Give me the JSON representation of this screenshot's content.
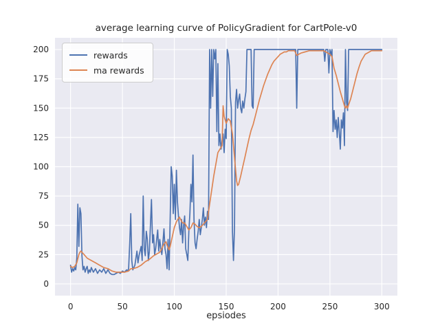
{
  "chart_data": {
    "type": "line",
    "title": "average learning curve of PolicyGradient for CartPole-v0",
    "xlabel": "epsiodes",
    "ylabel": "",
    "xlim": [
      -15,
      315
    ],
    "ylim": [
      -10,
      210
    ],
    "xticks": [
      0,
      50,
      100,
      150,
      200,
      250,
      300
    ],
    "yticks": [
      0,
      25,
      50,
      75,
      100,
      125,
      150,
      175,
      200
    ],
    "grid": true,
    "legend_position": "upper left",
    "plot_background": "#eaeaf2",
    "grid_color": "#ffffff",
    "text_color": "#262626",
    "series": [
      {
        "name": "rewards",
        "color": "#4c72b0",
        "points": [
          [
            0,
            16
          ],
          [
            1,
            10
          ],
          [
            2,
            13
          ],
          [
            3,
            11
          ],
          [
            4,
            14
          ],
          [
            5,
            12
          ],
          [
            6,
            22
          ],
          [
            7,
            68
          ],
          [
            8,
            32
          ],
          [
            9,
            65
          ],
          [
            10,
            60
          ],
          [
            11,
            24
          ],
          [
            12,
            12
          ],
          [
            13,
            15
          ],
          [
            14,
            10
          ],
          [
            15,
            13
          ],
          [
            16,
            15
          ],
          [
            17,
            9
          ],
          [
            18,
            12
          ],
          [
            19,
            10
          ],
          [
            20,
            14
          ],
          [
            22,
            10
          ],
          [
            24,
            13
          ],
          [
            26,
            9
          ],
          [
            28,
            12
          ],
          [
            30,
            10
          ],
          [
            32,
            13
          ],
          [
            34,
            9
          ],
          [
            36,
            12
          ],
          [
            38,
            9
          ],
          [
            40,
            8
          ],
          [
            42,
            8
          ],
          [
            44,
            9
          ],
          [
            46,
            10
          ],
          [
            48,
            9
          ],
          [
            50,
            11
          ],
          [
            52,
            10
          ],
          [
            54,
            12
          ],
          [
            55,
            11
          ],
          [
            56,
            13
          ],
          [
            57,
            35
          ],
          [
            58,
            60
          ],
          [
            59,
            20
          ],
          [
            60,
            12
          ],
          [
            62,
            16
          ],
          [
            64,
            28
          ],
          [
            65,
            18
          ],
          [
            66,
            24
          ],
          [
            68,
            32
          ],
          [
            69,
            20
          ],
          [
            70,
            75
          ],
          [
            71,
            30
          ],
          [
            72,
            24
          ],
          [
            73,
            45
          ],
          [
            74,
            38
          ],
          [
            75,
            20
          ],
          [
            76,
            28
          ],
          [
            77,
            50
          ],
          [
            78,
            72
          ],
          [
            79,
            35
          ],
          [
            80,
            42
          ],
          [
            81,
            25
          ],
          [
            82,
            30
          ],
          [
            84,
            46
          ],
          [
            85,
            28
          ],
          [
            86,
            38
          ],
          [
            87,
            30
          ],
          [
            88,
            25
          ],
          [
            89,
            35
          ],
          [
            90,
            47
          ],
          [
            91,
            30
          ],
          [
            92,
            25
          ],
          [
            93,
            13
          ],
          [
            94,
            38
          ],
          [
            95,
            12
          ],
          [
            96,
            55
          ],
          [
            97,
            100
          ],
          [
            98,
            92
          ],
          [
            99,
            60
          ],
          [
            100,
            85
          ],
          [
            101,
            55
          ],
          [
            102,
            97
          ],
          [
            103,
            70
          ],
          [
            104,
            58
          ],
          [
            105,
            48
          ],
          [
            106,
            42
          ],
          [
            107,
            55
          ],
          [
            108,
            35
          ],
          [
            109,
            50
          ],
          [
            110,
            58
          ],
          [
            111,
            30
          ],
          [
            112,
            25
          ],
          [
            113,
            20
          ],
          [
            114,
            45
          ],
          [
            115,
            60
          ],
          [
            116,
            85
          ],
          [
            117,
            70
          ],
          [
            118,
            110
          ],
          [
            119,
            55
          ],
          [
            120,
            35
          ],
          [
            121,
            30
          ],
          [
            122,
            38
          ],
          [
            123,
            45
          ],
          [
            124,
            55
          ],
          [
            125,
            42
          ],
          [
            126,
            48
          ],
          [
            127,
            55
          ],
          [
            128,
            65
          ],
          [
            129,
            50
          ],
          [
            130,
            57
          ],
          [
            131,
            48
          ],
          [
            132,
            62
          ],
          [
            133,
            55
          ],
          [
            134,
            200
          ],
          [
            135,
            150
          ],
          [
            136,
            200
          ],
          [
            137,
            160
          ],
          [
            138,
            200
          ],
          [
            139,
            192
          ],
          [
            140,
            200
          ],
          [
            141,
            130
          ],
          [
            142,
            188
          ],
          [
            143,
            118
          ],
          [
            144,
            128
          ],
          [
            145,
            115
          ],
          [
            146,
            122
          ],
          [
            147,
            128
          ],
          [
            148,
            112
          ],
          [
            149,
            132
          ],
          [
            150,
            124
          ],
          [
            151,
            200
          ],
          [
            152,
            196
          ],
          [
            153,
            186
          ],
          [
            154,
            160
          ],
          [
            155,
            150
          ],
          [
            156,
            45
          ],
          [
            157,
            20
          ],
          [
            158,
            48
          ],
          [
            159,
            155
          ],
          [
            160,
            166
          ],
          [
            161,
            150
          ],
          [
            162,
            157
          ],
          [
            163,
            162
          ],
          [
            164,
            150
          ],
          [
            165,
            146
          ],
          [
            166,
            156
          ],
          [
            167,
            150
          ],
          [
            168,
            158
          ],
          [
            169,
            164
          ],
          [
            170,
            200
          ],
          [
            174,
            200
          ],
          [
            175,
            152
          ],
          [
            176,
            150
          ],
          [
            177,
            200
          ],
          [
            180,
            200
          ],
          [
            185,
            200
          ],
          [
            190,
            200
          ],
          [
            195,
            200
          ],
          [
            200,
            200
          ],
          [
            205,
            200
          ],
          [
            210,
            200
          ],
          [
            215,
            200
          ],
          [
            217,
            200
          ],
          [
            218,
            150
          ],
          [
            219,
            200
          ],
          [
            225,
            200
          ],
          [
            230,
            200
          ],
          [
            235,
            200
          ],
          [
            240,
            200
          ],
          [
            244,
            200
          ],
          [
            245,
            190
          ],
          [
            246,
            200
          ],
          [
            248,
            200
          ],
          [
            249,
            180
          ],
          [
            250,
            200
          ],
          [
            251,
            195
          ],
          [
            252,
            200
          ],
          [
            253,
            130
          ],
          [
            254,
            148
          ],
          [
            255,
            132
          ],
          [
            256,
            140
          ],
          [
            257,
            125
          ],
          [
            258,
            142
          ],
          [
            259,
            130
          ],
          [
            260,
            115
          ],
          [
            261,
            140
          ],
          [
            262,
            133
          ],
          [
            263,
            146
          ],
          [
            264,
            118
          ],
          [
            265,
            200
          ],
          [
            266,
            155
          ],
          [
            267,
            148
          ],
          [
            268,
            200
          ],
          [
            270,
            200
          ],
          [
            275,
            200
          ],
          [
            280,
            200
          ],
          [
            285,
            200
          ],
          [
            290,
            200
          ],
          [
            295,
            200
          ],
          [
            300,
            200
          ]
        ]
      },
      {
        "name": "ma rewards",
        "color": "#dd8452",
        "points": [
          [
            0,
            15
          ],
          [
            2,
            14
          ],
          [
            4,
            15
          ],
          [
            6,
            18
          ],
          [
            8,
            25
          ],
          [
            9,
            27
          ],
          [
            10,
            28
          ],
          [
            12,
            26
          ],
          [
            14,
            24
          ],
          [
            16,
            22
          ],
          [
            18,
            21
          ],
          [
            20,
            20
          ],
          [
            24,
            18
          ],
          [
            28,
            16
          ],
          [
            32,
            14
          ],
          [
            36,
            13
          ],
          [
            40,
            11
          ],
          [
            44,
            10
          ],
          [
            48,
            10
          ],
          [
            52,
            10
          ],
          [
            56,
            11
          ],
          [
            58,
            13
          ],
          [
            60,
            13
          ],
          [
            64,
            14
          ],
          [
            68,
            16
          ],
          [
            72,
            19
          ],
          [
            76,
            21
          ],
          [
            80,
            24
          ],
          [
            84,
            26
          ],
          [
            86,
            27
          ],
          [
            88,
            30
          ],
          [
            90,
            34
          ],
          [
            92,
            36
          ],
          [
            93,
            33
          ],
          [
            94,
            31
          ],
          [
            95,
            29
          ],
          [
            96,
            32
          ],
          [
            98,
            40
          ],
          [
            100,
            48
          ],
          [
            102,
            53
          ],
          [
            104,
            56
          ],
          [
            105,
            57
          ],
          [
            106,
            55
          ],
          [
            108,
            52
          ],
          [
            110,
            52
          ],
          [
            112,
            49
          ],
          [
            114,
            46
          ],
          [
            116,
            48
          ],
          [
            118,
            52
          ],
          [
            120,
            51
          ],
          [
            122,
            49
          ],
          [
            124,
            48
          ],
          [
            126,
            49
          ],
          [
            128,
            51
          ],
          [
            130,
            53
          ],
          [
            132,
            55
          ],
          [
            134,
            68
          ],
          [
            136,
            80
          ],
          [
            138,
            92
          ],
          [
            140,
            102
          ],
          [
            142,
            112
          ],
          [
            144,
            115
          ],
          [
            146,
            118
          ],
          [
            147,
            152
          ],
          [
            148,
            143
          ],
          [
            150,
            137
          ],
          [
            152,
            141
          ],
          [
            154,
            139
          ],
          [
            156,
            128
          ],
          [
            158,
            108
          ],
          [
            160,
            88
          ],
          [
            161,
            84
          ],
          [
            162,
            85
          ],
          [
            164,
            92
          ],
          [
            166,
            100
          ],
          [
            168,
            108
          ],
          [
            170,
            116
          ],
          [
            172,
            124
          ],
          [
            174,
            131
          ],
          [
            176,
            136
          ],
          [
            178,
            143
          ],
          [
            180,
            150
          ],
          [
            182,
            157
          ],
          [
            184,
            163
          ],
          [
            186,
            169
          ],
          [
            188,
            174
          ],
          [
            190,
            179
          ],
          [
            192,
            183
          ],
          [
            194,
            187
          ],
          [
            196,
            190
          ],
          [
            198,
            192
          ],
          [
            200,
            194
          ],
          [
            202,
            196
          ],
          [
            204,
            197
          ],
          [
            206,
            198
          ],
          [
            208,
            198
          ],
          [
            210,
            199
          ],
          [
            214,
            199
          ],
          [
            216,
            199
          ],
          [
            218,
            195
          ],
          [
            220,
            196
          ],
          [
            222,
            197
          ],
          [
            226,
            198
          ],
          [
            230,
            199
          ],
          [
            235,
            199
          ],
          [
            240,
            199
          ],
          [
            244,
            199
          ],
          [
            246,
            198
          ],
          [
            248,
            197
          ],
          [
            250,
            196
          ],
          [
            252,
            194
          ],
          [
            253,
            189
          ],
          [
            254,
            184
          ],
          [
            256,
            178
          ],
          [
            258,
            171
          ],
          [
            260,
            164
          ],
          [
            262,
            158
          ],
          [
            264,
            152
          ],
          [
            265,
            150
          ],
          [
            266,
            152
          ],
          [
            267,
            150
          ],
          [
            268,
            153
          ],
          [
            270,
            158
          ],
          [
            272,
            165
          ],
          [
            274,
            172
          ],
          [
            276,
            179
          ],
          [
            278,
            185
          ],
          [
            280,
            190
          ],
          [
            282,
            193
          ],
          [
            284,
            196
          ],
          [
            286,
            197
          ],
          [
            288,
            198
          ],
          [
            290,
            199
          ],
          [
            295,
            199
          ],
          [
            300,
            199
          ]
        ]
      }
    ]
  }
}
